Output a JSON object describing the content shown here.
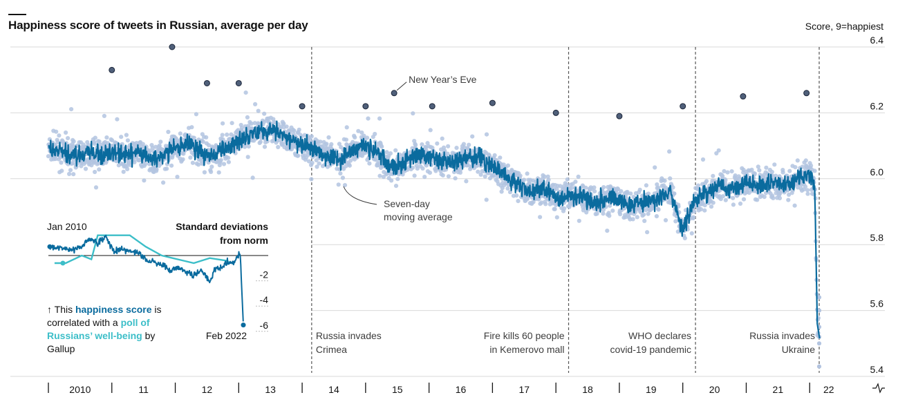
{
  "title": "Happiness score of tweets in Russian, average per day",
  "unit_label": "Score, 9=happiest",
  "colors": {
    "daily_points": "#b3c4e0",
    "moving_average": "#0a6b9e",
    "outlier_points": "#50607a",
    "gallup_poll": "#3cbec8",
    "grid": "#d9d9d9",
    "event_lines": "#555555"
  },
  "chart_data": {
    "type": "scatter",
    "title": "Happiness score of tweets in Russian, average per day",
    "ylabel": "Score, 9=happiest",
    "ylim": [
      5.4,
      6.4
    ],
    "xlim": [
      2009.6,
      2022.3
    ],
    "y_ticks": [
      5.4,
      5.6,
      5.8,
      6.0,
      6.2,
      6.4
    ],
    "y_tick_labels": [
      "5.4",
      "5.6",
      "5.8",
      "6.0",
      "6.2",
      "6.4"
    ],
    "x_tick_labels": [
      "2010",
      "11",
      "12",
      "13",
      "14",
      "15",
      "16",
      "17",
      "18",
      "19",
      "20",
      "21",
      "22"
    ],
    "grid": true,
    "series": [
      {
        "name": "Seven-day moving average",
        "x": [
          2010.0,
          2010.2,
          2010.4,
          2010.6,
          2010.8,
          2011.0,
          2011.2,
          2011.4,
          2011.6,
          2011.8,
          2012.0,
          2012.2,
          2012.4,
          2012.6,
          2012.8,
          2013.0,
          2013.2,
          2013.4,
          2013.6,
          2013.8,
          2014.0,
          2014.2,
          2014.4,
          2014.6,
          2014.8,
          2015.0,
          2015.2,
          2015.4,
          2015.6,
          2015.8,
          2016.0,
          2016.2,
          2016.4,
          2016.6,
          2016.8,
          2017.0,
          2017.2,
          2017.4,
          2017.6,
          2017.8,
          2018.0,
          2018.2,
          2018.4,
          2018.6,
          2018.8,
          2019.0,
          2019.2,
          2019.4,
          2019.6,
          2019.8,
          2020.0,
          2020.2,
          2020.4,
          2020.6,
          2020.8,
          2021.0,
          2021.2,
          2021.4,
          2021.6,
          2021.8,
          2022.0,
          2022.08,
          2022.12,
          2022.16
        ],
        "y": [
          6.09,
          6.08,
          6.07,
          6.08,
          6.07,
          6.08,
          6.07,
          6.08,
          6.06,
          6.07,
          6.09,
          6.11,
          6.08,
          6.07,
          6.09,
          6.12,
          6.14,
          6.15,
          6.14,
          6.12,
          6.1,
          6.09,
          6.07,
          6.06,
          6.09,
          6.1,
          6.08,
          6.03,
          6.05,
          6.07,
          6.07,
          6.05,
          6.05,
          6.07,
          6.06,
          6.04,
          6.01,
          5.98,
          5.96,
          5.97,
          5.94,
          5.95,
          5.95,
          5.93,
          5.94,
          5.94,
          5.92,
          5.93,
          5.94,
          5.96,
          5.84,
          5.94,
          5.96,
          5.98,
          5.97,
          5.99,
          5.98,
          5.99,
          5.98,
          6.0,
          6.01,
          5.98,
          5.56,
          5.51
        ]
      },
      {
        "name": "",
        "type": "outliers",
        "x": [
          2011.0,
          2011.95,
          2012.5,
          2013.0,
          2014.0,
          2015.0,
          2015.45,
          2016.05,
          2017.0,
          2018.0,
          2019.0,
          2020.0,
          2020.95,
          2021.95
        ],
        "y": [
          6.33,
          6.4,
          6.29,
          6.29,
          6.22,
          6.22,
          6.26,
          6.22,
          6.23,
          6.2,
          6.19,
          6.22,
          6.25,
          6.26
        ]
      }
    ],
    "annotations": [
      {
        "label": "New Year’s Eve",
        "x": 2015.45,
        "y": 6.26
      },
      {
        "label": "Seven-day moving average",
        "x": 2014.5,
        "y": 5.99
      },
      {
        "label": "Russia invades Crimea",
        "x": 2014.15,
        "line": true
      },
      {
        "label": "Fire kills 60 people in Kemerovo mall",
        "x": 2018.2,
        "line": true
      },
      {
        "label": "WHO declares covid-19 pandemic",
        "x": 2020.2,
        "line": true
      },
      {
        "label": "Russia invades Ukraine",
        "x": 2022.15,
        "line": true
      }
    ]
  },
  "inset": {
    "start_label": "Jan 2010",
    "end_label": "Feb 2022",
    "axis_title_line1": "Standard deviations",
    "axis_title_line2": "from norm",
    "y_tick_labels": [
      "-2",
      "-4",
      "-6"
    ],
    "series": [
      {
        "name": "happiness score",
        "color": "#0a6b9e",
        "x": [
          2010.0,
          2010.5,
          2011.0,
          2011.5,
          2012.0,
          2012.5,
          2013.0,
          2013.5,
          2014.0,
          2014.5,
          2015.0,
          2015.5,
          2016.0,
          2016.5,
          2017.0,
          2017.5,
          2018.0,
          2018.5,
          2019.0,
          2019.5,
          2020.0,
          2020.3,
          2020.6,
          2021.0,
          2021.5,
          2021.9,
          2022.1
        ],
        "y": [
          0.7,
          0.6,
          0.5,
          0.5,
          0.7,
          1.3,
          1.0,
          1.5,
          0.3,
          0.5,
          0.3,
          0.2,
          -0.3,
          -0.5,
          -0.7,
          -1.2,
          -0.9,
          -1.3,
          -1.5,
          -1.2,
          -2.1,
          -1.1,
          -1.0,
          -0.6,
          -0.5,
          0.2,
          -5.5
        ]
      },
      {
        "name": "poll of Russians’ well-being",
        "color": "#3cbec8",
        "x": [
          2010.3,
          2011.0,
          2012.0,
          2012.6,
          2013.0,
          2014.0,
          2015.0,
          2016.0,
          2017.0,
          2018.0,
          2019.0,
          2020.0,
          2021.0,
          2021.2
        ],
        "y": [
          -0.6,
          -0.6,
          0.0,
          -0.3,
          1.6,
          1.6,
          1.6,
          0.7,
          0.0,
          -0.3,
          -0.6,
          -0.2,
          -0.4,
          -0.5
        ]
      }
    ]
  },
  "inset_note": {
    "arrow": "↑",
    "part1": "This",
    "highlight1": "happiness score",
    "part2": "is correlated with a",
    "highlight2": "poll of Russians’ well-being",
    "part3": "by Gallup"
  }
}
